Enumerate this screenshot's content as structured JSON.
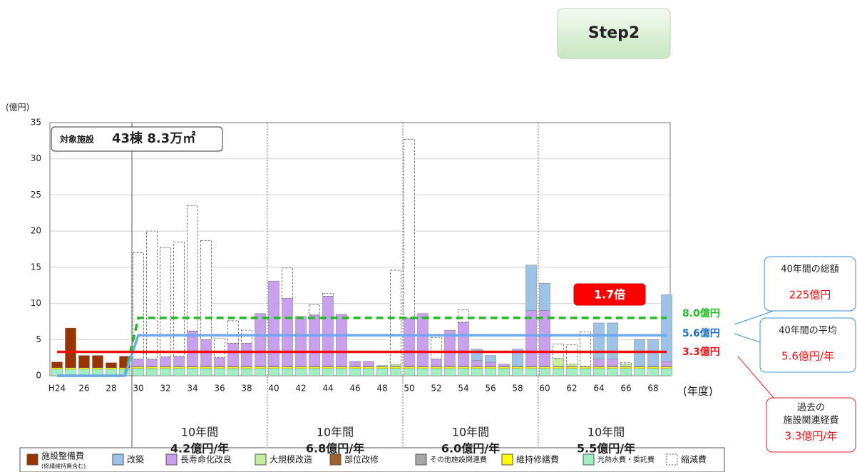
{
  "chart_data": {
    "type": "stacked_bar",
    "step": "Step2",
    "y_unit": "(億円)",
    "x_unit": "(年度)",
    "ylim": [
      0,
      35
    ],
    "yticks": [
      0,
      5,
      10,
      15,
      20,
      25,
      30,
      35
    ],
    "grid": true,
    "facility": {
      "label": "対象施設",
      "value": "43棟 8.3万㎡"
    },
    "ratio_badge": "1.7倍",
    "categories": [
      "H24",
      null,
      "26",
      null,
      "28",
      null,
      "30",
      null,
      "32",
      null,
      "34",
      null,
      "36",
      null,
      "38",
      null,
      "40",
      null,
      "42",
      null,
      "44",
      null,
      "46",
      null,
      "48",
      null,
      "50",
      null,
      "52",
      null,
      "54",
      null,
      "56",
      null,
      "58",
      null,
      "60",
      null,
      "62",
      null,
      "64",
      null,
      "66",
      null,
      "68",
      null
    ],
    "series": [
      {
        "name": "施設整備費",
        "legend_note": "(修繕維持費含む)",
        "color": "#993300",
        "values": [
          0.8,
          5.5,
          1.7,
          1.7,
          0.7,
          1.6,
          0,
          0,
          0,
          0,
          0,
          0,
          0,
          0,
          0,
          0,
          0,
          0,
          0,
          0,
          0,
          0,
          0,
          0,
          0,
          0,
          0,
          0,
          0,
          0,
          0,
          0,
          0,
          0,
          0,
          0,
          0,
          0,
          0,
          0,
          0,
          0,
          0,
          0,
          0,
          0
        ]
      },
      {
        "name": "改築",
        "color": "#9dc3e6",
        "values": [
          0,
          0,
          0,
          0,
          0,
          0,
          0,
          0,
          0,
          0,
          0,
          0,
          0,
          0,
          0,
          0,
          0,
          0,
          0,
          0,
          0,
          0,
          0,
          0,
          0,
          0,
          0,
          0,
          0,
          0,
          0,
          1.6,
          1.0,
          0,
          2.4,
          6.3,
          3.8,
          0,
          0,
          0,
          5.0,
          5.0,
          0,
          3.7,
          3.7,
          9.2
        ]
      },
      {
        "name": "長寿命化改良",
        "color": "#c8a0ee",
        "values": [
          0,
          0,
          0,
          0,
          0,
          0,
          1.0,
          1.0,
          1.3,
          1.4,
          4.9,
          3.7,
          1.2,
          3.2,
          3.2,
          7.3,
          11.8,
          9.4,
          6.9,
          7.1,
          9.7,
          7.2,
          0.7,
          0.7,
          0,
          0,
          6.7,
          7.3,
          1.0,
          5.0,
          6.1,
          0.8,
          0.5,
          0.3,
          0,
          7.7,
          7.7,
          0,
          0,
          0,
          1.0,
          1.0,
          0,
          0,
          0,
          0.7
        ]
      },
      {
        "name": "大規模改造",
        "color": "#c6ee9c",
        "values": [
          0,
          0,
          0,
          0,
          0,
          0,
          0,
          0,
          0,
          0,
          0,
          0,
          0,
          0,
          0,
          0,
          0,
          0,
          0,
          0,
          0,
          0,
          0,
          0,
          0.1,
          0.2,
          0,
          0,
          0,
          0,
          0,
          0,
          0,
          0,
          0,
          0,
          0,
          1.1,
          0.3,
          0,
          0,
          0,
          0.3,
          0,
          0,
          0
        ]
      },
      {
        "name": "部位改修",
        "color": "#a0622a",
        "values": [
          0,
          0,
          0,
          0,
          0,
          0,
          0,
          0,
          0,
          0,
          0,
          0,
          0,
          0,
          0,
          0,
          0,
          0,
          0,
          0,
          0,
          0,
          0,
          0,
          0,
          0,
          0,
          0,
          0,
          0,
          0,
          0,
          0,
          0,
          0,
          0,
          0,
          0,
          0,
          0,
          0,
          0,
          0,
          0,
          0,
          0
        ]
      },
      {
        "name": "その他施設関連費",
        "color": "#a6a6a6",
        "values": [
          0,
          0,
          0,
          0,
          0,
          0,
          0.1,
          0.1,
          0.1,
          0.1,
          0.1,
          0.1,
          0.1,
          0.1,
          0.1,
          0.1,
          0.1,
          0.1,
          0.1,
          0.1,
          0.1,
          0.1,
          0.1,
          0.1,
          0.1,
          0.1,
          0.1,
          0.1,
          0.1,
          0.1,
          0.1,
          0.1,
          0.1,
          0.1,
          0.1,
          0.1,
          0.1,
          0.1,
          0.1,
          0.1,
          0.1,
          0.1,
          0.1,
          0.1,
          0.1,
          0.1
        ]
      },
      {
        "name": "維持修繕費",
        "color": "#ffff00",
        "values": [
          0.2,
          0.2,
          0.2,
          0.2,
          0.2,
          0.2,
          0.2,
          0.2,
          0.2,
          0.2,
          0.2,
          0.2,
          0.2,
          0.2,
          0.2,
          0.2,
          0.2,
          0.2,
          0.2,
          0.2,
          0.2,
          0.2,
          0.2,
          0.2,
          0.2,
          0.2,
          0.2,
          0.2,
          0.2,
          0.2,
          0.2,
          0.2,
          0.2,
          0.2,
          0.2,
          0.2,
          0.2,
          0.2,
          0.2,
          0.2,
          0.2,
          0.2,
          0.2,
          0.2,
          0.2,
          0.2
        ]
      },
      {
        "name": "光熱水費・委託費",
        "color": "#a0f0c4",
        "values": [
          0.9,
          0.9,
          0.9,
          0.9,
          0.9,
          0.9,
          1.0,
          1.0,
          1.0,
          1.0,
          1.0,
          1.0,
          1.0,
          1.0,
          1.0,
          1.0,
          1.0,
          1.0,
          1.0,
          1.0,
          1.0,
          1.0,
          1.0,
          1.0,
          1.0,
          1.0,
          1.0,
          1.0,
          1.0,
          1.0,
          1.0,
          1.0,
          1.0,
          1.0,
          1.0,
          1.0,
          1.0,
          1.0,
          1.0,
          1.0,
          1.0,
          1.0,
          1.0,
          1.0,
          1.0,
          1.0
        ]
      },
      {
        "name": "縮減費",
        "color": "#ffffff",
        "dashed": true,
        "values": [
          0,
          0,
          0,
          0,
          0,
          0,
          14.7,
          17.7,
          15.1,
          15.8,
          17.3,
          13.7,
          2.7,
          3.1,
          1.8,
          0,
          0,
          4.2,
          0,
          1.4,
          0.4,
          0,
          0,
          0,
          0,
          13.1,
          24.7,
          0,
          3.0,
          0,
          1.7,
          0,
          0,
          0,
          0,
          0,
          0,
          2.0,
          2.7,
          4.8,
          0,
          0,
          0.2,
          0,
          0,
          0
        ]
      }
    ],
    "lines": [
      {
        "label": "8.0億円",
        "color": "#22bb22",
        "dashed": true,
        "values": [
          0,
          0,
          0,
          0,
          0,
          0,
          8.0,
          8.0,
          8.0,
          8.0,
          8.0,
          8.0,
          8.0,
          8.0,
          8.0,
          8.0,
          8.0,
          8.0,
          8.0,
          8.0,
          8.0,
          8.0,
          8.0,
          8.0,
          8.0,
          8.0,
          8.0,
          8.0,
          8.0,
          8.0,
          8.0,
          8.0,
          8.0,
          8.0,
          8.0,
          8.0,
          8.0,
          8.0,
          8.0,
          8.0,
          8.0,
          8.0,
          8.0,
          8.0,
          8.0,
          8.0
        ]
      },
      {
        "label": "5.6億円",
        "color": "#6fa8f0",
        "text_color": "#1f6fc0",
        "values": [
          0,
          0,
          0,
          0,
          0,
          0,
          5.6,
          5.6,
          5.6,
          5.6,
          5.6,
          5.6,
          5.6,
          5.6,
          5.6,
          5.6,
          5.6,
          5.6,
          5.6,
          5.6,
          5.6,
          5.6,
          5.6,
          5.6,
          5.6,
          5.6,
          5.6,
          5.6,
          5.6,
          5.6,
          5.6,
          5.6,
          5.6,
          5.6,
          5.6,
          5.6,
          5.6,
          5.6,
          5.6,
          5.6,
          5.6,
          5.6,
          5.6,
          5.6,
          5.6,
          5.6
        ]
      },
      {
        "label": "3.3億円",
        "color": "#ee1111",
        "values": [
          3.3,
          3.3,
          3.3,
          3.3,
          3.3,
          3.3,
          3.3,
          3.3,
          3.3,
          3.3,
          3.3,
          3.3,
          3.3,
          3.3,
          3.3,
          3.3,
          3.3,
          3.3,
          3.3,
          3.3,
          3.3,
          3.3,
          3.3,
          3.3,
          3.3,
          3.3,
          3.3,
          3.3,
          3.3,
          3.3,
          3.3,
          3.3,
          3.3,
          3.3,
          3.3,
          3.3,
          3.3,
          3.3,
          3.3,
          3.3,
          3.3,
          3.3,
          3.3,
          3.3,
          3.3,
          3.3
        ]
      }
    ],
    "periods": [
      {
        "label": "10年間",
        "value_label": "4.2億円/年"
      },
      {
        "label": "10年間",
        "value_label": "6.8億円/年"
      },
      {
        "label": "10年間",
        "value_label": "6.0億円/年"
      },
      {
        "label": "10年間",
        "value_label": "5.5億円/年"
      }
    ],
    "callouts": [
      {
        "lines": [
          "40年間の総額"
        ],
        "value_label": "225億円"
      },
      {
        "lines": [
          "40年間の平均"
        ],
        "value_label": "5.6億円/年"
      },
      {
        "lines": [
          "過去の",
          "施設関連経費"
        ],
        "value_label": "3.3億円/年"
      }
    ]
  }
}
